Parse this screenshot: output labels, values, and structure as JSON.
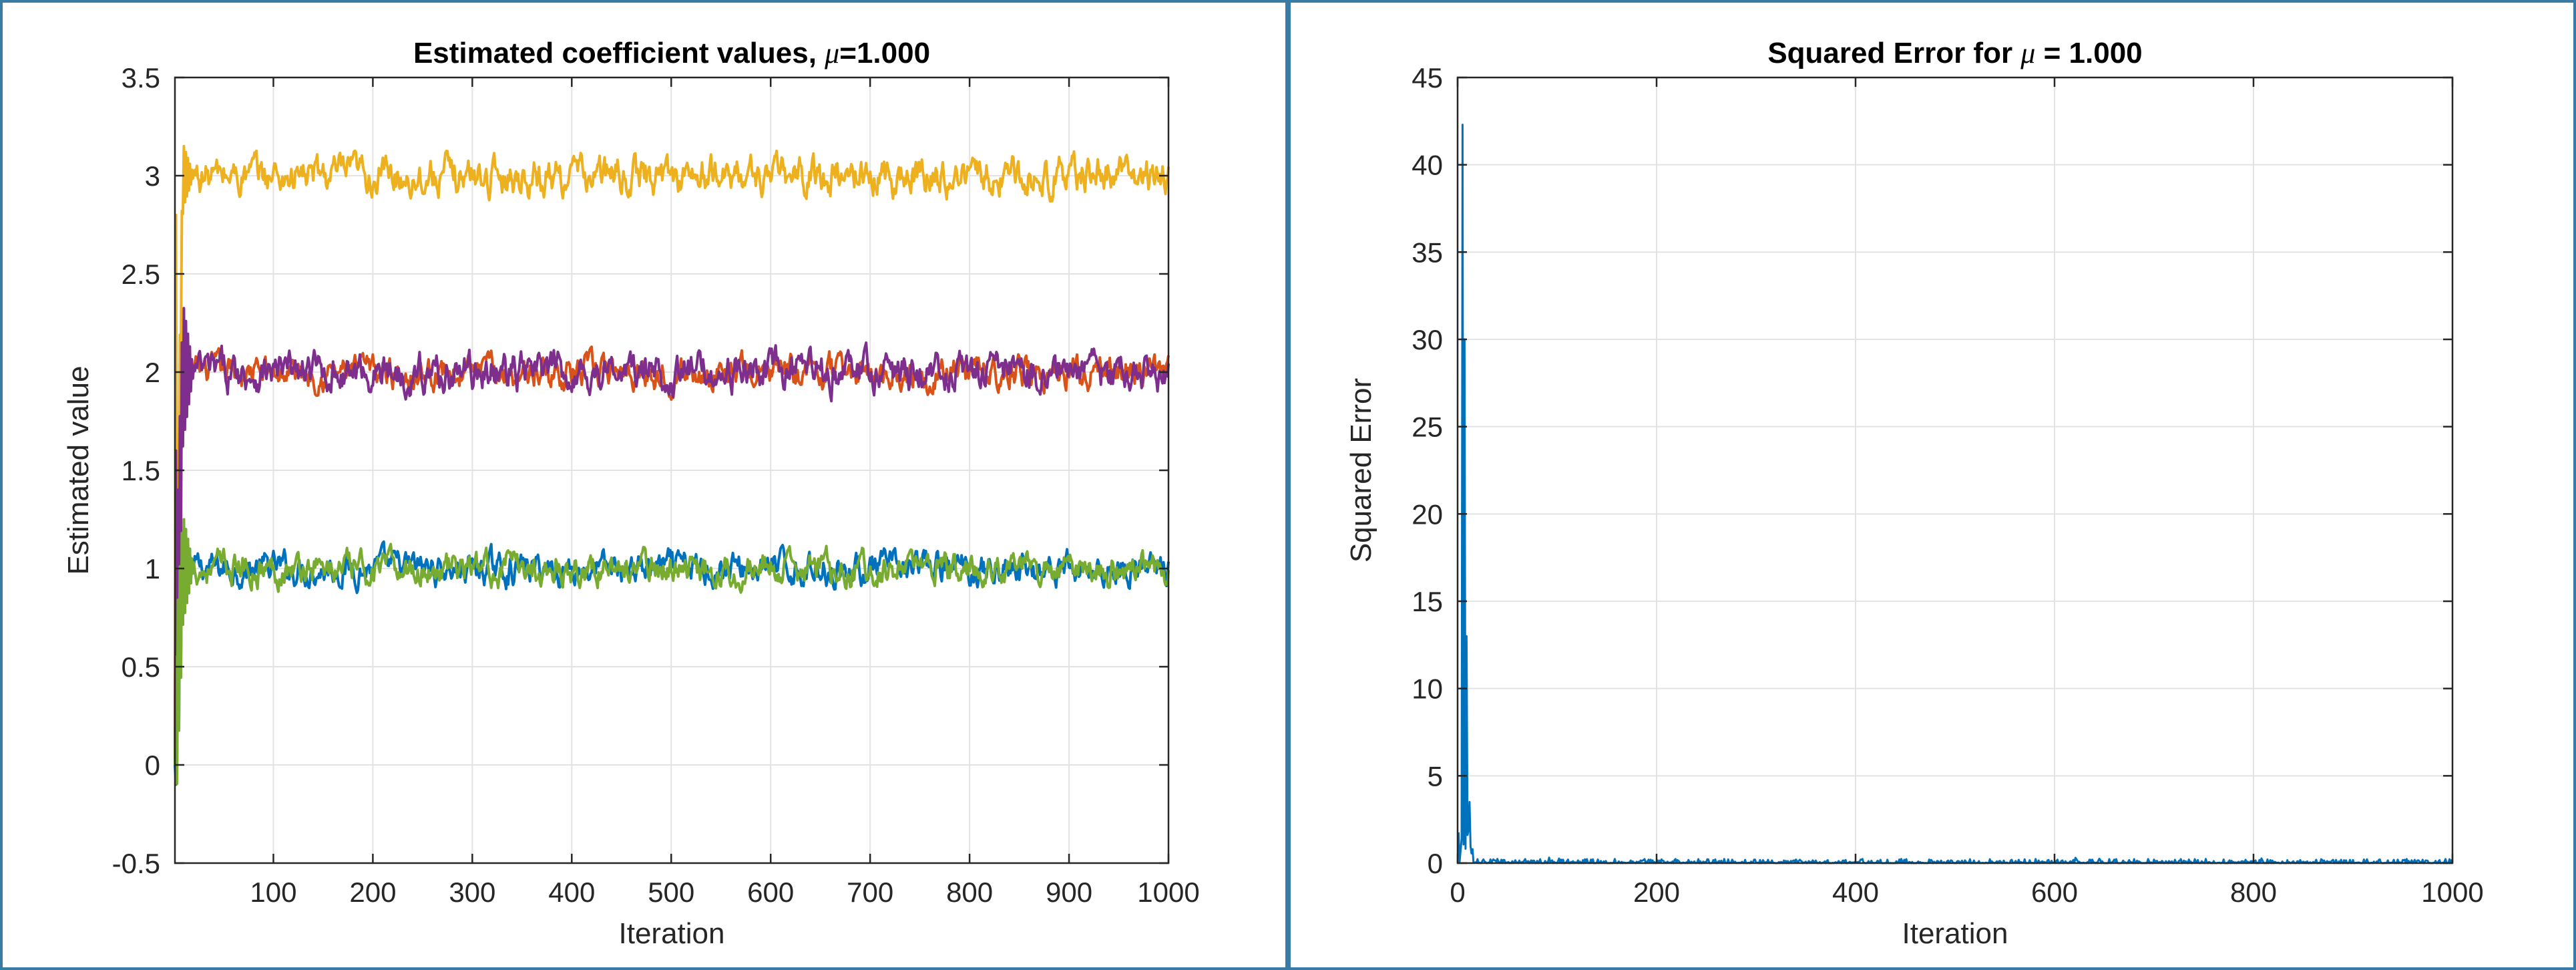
{
  "chart_data": [
    {
      "type": "line",
      "title_prefix": "Estimated coefficient values, ",
      "title_symbol": "μ",
      "title_suffix": "=1.000",
      "xlabel": "Iteration",
      "ylabel": "Estimated value",
      "xlim": [
        1,
        1000
      ],
      "ylim": [
        -0.5,
        3.5
      ],
      "xticks": [
        100,
        200,
        300,
        400,
        500,
        600,
        700,
        800,
        900,
        1000
      ],
      "yticks": [
        -0.5,
        0,
        0.5,
        1,
        1.5,
        2,
        2.5,
        3,
        3.5
      ],
      "ytick_labels": [
        "-0.5",
        "0",
        "0.5",
        "1",
        "1.5",
        "2",
        "2.5",
        "3",
        "3.5"
      ],
      "grid": true,
      "series": [
        {
          "color": "#0072BD",
          "start": 0.0,
          "steady": 1.0,
          "noise": 0.05,
          "peak": 1.5,
          "min": -0.1
        },
        {
          "color": "#D95319",
          "start": 0.0,
          "steady": 2.0,
          "noise": 0.05,
          "peak": 2.2,
          "min": 1.8
        },
        {
          "color": "#EDB120",
          "start": 0.0,
          "steady": 3.0,
          "noise": 0.06,
          "peak": 3.3,
          "min": 2.8
        },
        {
          "color": "#7E2F8E",
          "start": 0.0,
          "steady": 2.0,
          "noise": 0.06,
          "peak": 2.65,
          "min": 1.6
        },
        {
          "color": "#77AC30",
          "start": 0.0,
          "steady": 1.0,
          "noise": 0.05,
          "peak": 1.5,
          "min": 0.55
        }
      ]
    },
    {
      "type": "line",
      "title_prefix": "Squared Error for ",
      "title_symbol": "μ",
      "title_suffix": " = 1.000",
      "xlabel": "Iteration",
      "ylabel": "Squared Error",
      "xlim": [
        0,
        1000
      ],
      "ylim": [
        0,
        45
      ],
      "xticks": [
        0,
        200,
        400,
        600,
        800,
        1000
      ],
      "yticks": [
        0,
        5,
        10,
        15,
        20,
        25,
        30,
        35,
        40,
        45
      ],
      "grid": true,
      "series": [
        {
          "color": "#0072BD",
          "early_peaks": [
            [
              5,
              42.3
            ],
            [
              7,
              30.0
            ],
            [
              9,
              13.0
            ],
            [
              12,
              3.5
            ],
            [
              15,
              0.8
            ]
          ],
          "steady": 0.05,
          "noise": 0.08
        }
      ]
    }
  ]
}
